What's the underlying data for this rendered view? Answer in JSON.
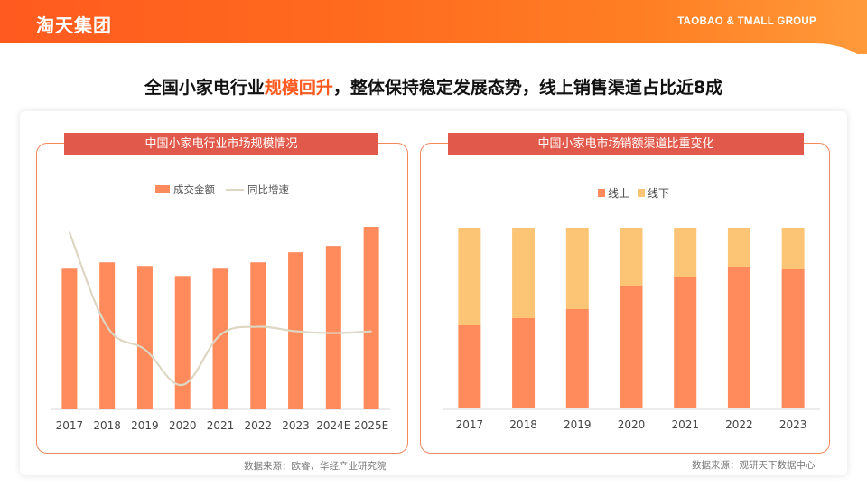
{
  "header": {
    "brand_cn": "淘天集团",
    "brand_en": "TAOBAO & TMALL GROUP"
  },
  "headline": {
    "before": "全国小家电行业",
    "highlight": "规模回升",
    "after": "，整体保持稳定发展态势，线上销售渠道占比近8成"
  },
  "colors": {
    "brand": "#ff5a1f",
    "bar": "#ff8a5b",
    "line": "#ddd6c3",
    "online": "#ff8a5b",
    "offline": "#fcc576",
    "panel_title_bg": "#e1594a"
  },
  "left_panel": {
    "title": "中国小家电行业市场规模情况",
    "source": "数据来源：欧睿，华经产业研究院"
  },
  "right_panel": {
    "title": "中国小家电市场销额渠道比重变化",
    "source": "数据来源：观研天下数据中心"
  },
  "chart_data": [
    {
      "type": "bar",
      "title": "中国小家电行业市场规模情况",
      "categories": [
        "2017",
        "2018",
        "2019",
        "2020",
        "2021",
        "2022",
        "2023",
        "2024E",
        "2025E"
      ],
      "series": [
        {
          "name": "成交金额",
          "type": "bar",
          "values": [
            155,
            162,
            158,
            147,
            155,
            162,
            173,
            180,
            201
          ]
        },
        {
          "name": "同比增速",
          "type": "line",
          "values": [
            195,
            91,
            66,
            27,
            82,
            91,
            86,
            84,
            86
          ]
        }
      ],
      "ylim": [
        0,
        210
      ],
      "legend_position": "top",
      "y_axis_labels": "none"
    },
    {
      "type": "bar",
      "stacked": true,
      "percent": true,
      "title": "中国小家电市场销额渠道比重变化",
      "categories": [
        "2017",
        "2018",
        "2019",
        "2020",
        "2021",
        "2022",
        "2023"
      ],
      "series": [
        {
          "name": "线上",
          "values": [
            46,
            50,
            55,
            68,
            73,
            78,
            77
          ]
        },
        {
          "name": "线下",
          "values": [
            54,
            50,
            45,
            32,
            27,
            22,
            23
          ]
        }
      ],
      "ylim": [
        0,
        100
      ],
      "legend_position": "top",
      "y_axis_labels": "none"
    }
  ]
}
